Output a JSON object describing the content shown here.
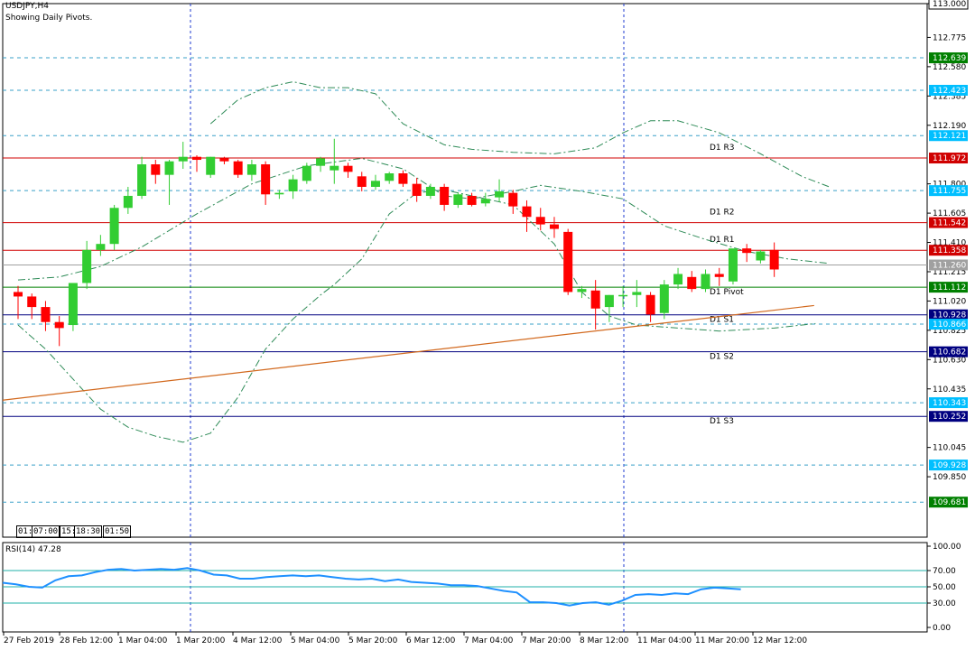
{
  "header": {
    "symbol": "USDJPY,H4",
    "subtitle": "Showing Daily Pivots."
  },
  "clocks": [
    "01:",
    "07:00",
    "15:",
    "18:30",
    "01:50"
  ],
  "colors": {
    "bull": "#32cd32",
    "bear": "#ff0000",
    "pivot_line": "#008000",
    "resistance_line": "#d00000",
    "support_line": "#000080",
    "trend_line": "#d2691e",
    "bollinger": "#2e8b57",
    "grid": "#1f3bd0",
    "hline_dashed": "#3aa0c8",
    "price_box_blue": "#00bfff",
    "rsi_line": "#1e90ff",
    "rsi_levels": "#20b2aa"
  },
  "chart_data": [
    {
      "type": "candlestick",
      "title": "USDJPY,H4",
      "subtitle": "Showing Daily Pivots.",
      "ylim": [
        109.55,
        113.0
      ],
      "y_ticks": [
        "113.000",
        "112.775",
        "112.580",
        "112.385",
        "112.190",
        "111.800",
        "111.605",
        "111.410",
        "111.215",
        "111.020",
        "110.825",
        "110.630",
        "110.435",
        "110.045",
        "109.850"
      ],
      "x_tick_labels": [
        "27 Feb 2019",
        "28 Feb 12:00",
        "1 Mar 04:00",
        "1 Mar 20:00",
        "4 Mar 12:00",
        "5 Mar 04:00",
        "5 Mar 20:00",
        "6 Mar 12:00",
        "7 Mar 04:00",
        "7 Mar 20:00",
        "8 Mar 12:00",
        "11 Mar 04:00",
        "11 Mar 20:00",
        "12 Mar 12:00"
      ],
      "candles": [
        {
          "o": 111.08,
          "h": 111.12,
          "l": 110.9,
          "c": 111.05
        },
        {
          "o": 111.05,
          "h": 111.07,
          "l": 110.9,
          "c": 110.98
        },
        {
          "o": 110.98,
          "h": 111.02,
          "l": 110.82,
          "c": 110.88
        },
        {
          "o": 110.88,
          "h": 110.92,
          "l": 110.72,
          "c": 110.84
        },
        {
          "o": 110.86,
          "h": 111.12,
          "l": 110.82,
          "c": 111.14
        },
        {
          "o": 111.14,
          "h": 111.42,
          "l": 111.1,
          "c": 111.36
        },
        {
          "o": 111.36,
          "h": 111.46,
          "l": 111.32,
          "c": 111.4
        },
        {
          "o": 111.4,
          "h": 111.66,
          "l": 111.36,
          "c": 111.64
        },
        {
          "o": 111.64,
          "h": 111.78,
          "l": 111.6,
          "c": 111.72
        },
        {
          "o": 111.72,
          "h": 111.98,
          "l": 111.7,
          "c": 111.93
        },
        {
          "o": 111.93,
          "h": 111.96,
          "l": 111.8,
          "c": 111.86
        },
        {
          "o": 111.86,
          "h": 111.96,
          "l": 111.66,
          "c": 111.95
        },
        {
          "o": 111.95,
          "h": 112.08,
          "l": 111.9,
          "c": 111.98
        },
        {
          "o": 111.98,
          "h": 111.99,
          "l": 111.88,
          "c": 111.96
        },
        {
          "o": 111.86,
          "h": 111.98,
          "l": 111.84,
          "c": 111.98
        },
        {
          "o": 111.97,
          "h": 111.98,
          "l": 111.93,
          "c": 111.95
        },
        {
          "o": 111.95,
          "h": 111.96,
          "l": 111.84,
          "c": 111.86
        },
        {
          "o": 111.86,
          "h": 111.96,
          "l": 111.82,
          "c": 111.93
        },
        {
          "o": 111.93,
          "h": 111.95,
          "l": 111.66,
          "c": 111.73
        },
        {
          "o": 111.73,
          "h": 111.76,
          "l": 111.7,
          "c": 111.74
        },
        {
          "o": 111.75,
          "h": 111.86,
          "l": 111.7,
          "c": 111.83
        },
        {
          "o": 111.82,
          "h": 111.94,
          "l": 111.8,
          "c": 111.92
        },
        {
          "o": 111.92,
          "h": 111.98,
          "l": 111.88,
          "c": 111.97
        },
        {
          "o": 111.89,
          "h": 112.1,
          "l": 111.8,
          "c": 111.92
        },
        {
          "o": 111.92,
          "h": 111.94,
          "l": 111.84,
          "c": 111.88
        },
        {
          "o": 111.85,
          "h": 111.88,
          "l": 111.75,
          "c": 111.78
        },
        {
          "o": 111.78,
          "h": 111.86,
          "l": 111.76,
          "c": 111.82
        },
        {
          "o": 111.82,
          "h": 111.88,
          "l": 111.8,
          "c": 111.87
        },
        {
          "o": 111.87,
          "h": 111.89,
          "l": 111.78,
          "c": 111.8
        },
        {
          "o": 111.8,
          "h": 111.84,
          "l": 111.68,
          "c": 111.72
        },
        {
          "o": 111.72,
          "h": 111.8,
          "l": 111.7,
          "c": 111.78
        },
        {
          "o": 111.78,
          "h": 111.8,
          "l": 111.62,
          "c": 111.66
        },
        {
          "o": 111.66,
          "h": 111.74,
          "l": 111.64,
          "c": 111.73
        },
        {
          "o": 111.72,
          "h": 111.74,
          "l": 111.65,
          "c": 111.66
        },
        {
          "o": 111.67,
          "h": 111.74,
          "l": 111.65,
          "c": 111.7
        },
        {
          "o": 111.71,
          "h": 111.83,
          "l": 111.68,
          "c": 111.75
        },
        {
          "o": 111.74,
          "h": 111.76,
          "l": 111.6,
          "c": 111.65
        },
        {
          "o": 111.65,
          "h": 111.69,
          "l": 111.48,
          "c": 111.58
        },
        {
          "o": 111.58,
          "h": 111.64,
          "l": 111.49,
          "c": 111.53
        },
        {
          "o": 111.53,
          "h": 111.58,
          "l": 111.44,
          "c": 111.5
        },
        {
          "o": 111.48,
          "h": 111.5,
          "l": 111.06,
          "c": 111.08
        },
        {
          "o": 111.08,
          "h": 111.12,
          "l": 111.04,
          "c": 111.1
        },
        {
          "o": 111.09,
          "h": 111.16,
          "l": 110.83,
          "c": 110.97
        },
        {
          "o": 110.98,
          "h": 111.06,
          "l": 110.88,
          "c": 111.06
        },
        {
          "o": 111.06,
          "h": 111.12,
          "l": 110.98,
          "c": 111.06
        },
        {
          "o": 111.06,
          "h": 111.16,
          "l": 110.98,
          "c": 111.08
        },
        {
          "o": 111.06,
          "h": 111.08,
          "l": 110.88,
          "c": 110.93
        },
        {
          "o": 110.94,
          "h": 111.16,
          "l": 110.9,
          "c": 111.13
        },
        {
          "o": 111.13,
          "h": 111.24,
          "l": 111.1,
          "c": 111.2
        },
        {
          "o": 111.18,
          "h": 111.22,
          "l": 111.08,
          "c": 111.1
        },
        {
          "o": 111.1,
          "h": 111.23,
          "l": 111.08,
          "c": 111.2
        },
        {
          "o": 111.2,
          "h": 111.24,
          "l": 111.12,
          "c": 111.18
        },
        {
          "o": 111.15,
          "h": 111.36,
          "l": 111.13,
          "c": 111.37
        },
        {
          "o": 111.37,
          "h": 111.4,
          "l": 111.28,
          "c": 111.34
        },
        {
          "o": 111.29,
          "h": 111.36,
          "l": 111.27,
          "c": 111.35
        },
        {
          "o": 111.36,
          "h": 111.41,
          "l": 111.18,
          "c": 111.23
        }
      ],
      "horizontal_levels": [
        {
          "label": "D1 R3",
          "value": 111.972,
          "style": "resistance"
        },
        {
          "label": "D1 R2",
          "value": 111.542,
          "style": "resistance"
        },
        {
          "label": "D1 R1",
          "value": 111.358,
          "style": "resistance"
        },
        {
          "label": "D1 Pivot",
          "value": 111.112,
          "style": "pivot"
        },
        {
          "label": "D1 S1",
          "value": 110.928,
          "style": "support"
        },
        {
          "label": "D1 S2",
          "value": 110.682,
          "style": "support"
        },
        {
          "label": "D1 S3",
          "value": 110.252,
          "style": "support"
        }
      ],
      "dashed_levels": [
        112.639,
        112.423,
        112.121,
        111.755,
        110.866,
        110.343,
        109.928,
        109.681
      ],
      "price_labels": [
        {
          "text": "113.000",
          "value": 113.0,
          "style": "plain"
        },
        {
          "text": "112.639",
          "value": 112.639,
          "style": "green"
        },
        {
          "text": "112.423",
          "value": 112.423,
          "style": "blue"
        },
        {
          "text": "112.121",
          "value": 112.121,
          "style": "blue"
        },
        {
          "text": "111.972",
          "value": 111.972,
          "style": "red"
        },
        {
          "text": "111.755",
          "value": 111.755,
          "style": "blue"
        },
        {
          "text": "111.542",
          "value": 111.542,
          "style": "red"
        },
        {
          "text": "111.358",
          "value": 111.358,
          "style": "red"
        },
        {
          "text": "111.260",
          "value": 111.26,
          "style": "gray"
        },
        {
          "text": "111.112",
          "value": 111.112,
          "style": "green"
        },
        {
          "text": "110.928",
          "value": 110.928,
          "style": "navy"
        },
        {
          "text": "110.866",
          "value": 110.866,
          "style": "blue"
        },
        {
          "text": "110.682",
          "value": 110.682,
          "style": "navy"
        },
        {
          "text": "110.343",
          "value": 110.343,
          "style": "blue"
        },
        {
          "text": "110.252",
          "value": 110.252,
          "style": "navy"
        },
        {
          "text": "109.928",
          "value": 109.928,
          "style": "blue"
        },
        {
          "text": "109.681",
          "value": 109.681,
          "style": "green"
        }
      ],
      "trend_line": {
        "from": [
          0,
          110.36
        ],
        "to": [
          57.9,
          110.99
        ]
      },
      "bollinger_upper": [
        [
          14,
          112.2
        ],
        [
          16,
          112.36
        ],
        [
          18,
          112.44
        ],
        [
          20,
          112.48
        ],
        [
          22,
          112.44
        ],
        [
          24,
          112.44
        ],
        [
          26,
          112.4
        ],
        [
          28,
          112.2
        ],
        [
          31,
          112.06
        ],
        [
          33,
          112.03
        ],
        [
          36,
          112.01
        ],
        [
          39,
          112.0
        ],
        [
          42,
          112.04
        ],
        [
          44,
          112.14
        ],
        [
          46,
          112.22
        ],
        [
          48,
          112.22
        ],
        [
          51,
          112.14
        ],
        [
          54,
          112.0
        ],
        [
          57,
          111.85
        ],
        [
          59,
          111.78
        ]
      ],
      "bollinger_middle": [
        [
          0,
          111.16
        ],
        [
          3,
          111.18
        ],
        [
          6,
          111.25
        ],
        [
          9,
          111.38
        ],
        [
          13,
          111.6
        ],
        [
          17,
          111.8
        ],
        [
          21,
          111.92
        ],
        [
          25,
          111.97
        ],
        [
          28,
          111.9
        ],
        [
          31,
          111.72
        ],
        [
          33,
          111.7
        ],
        [
          36,
          111.75
        ],
        [
          38,
          111.79
        ],
        [
          41,
          111.75
        ],
        [
          44,
          111.7
        ],
        [
          47,
          111.52
        ],
        [
          50,
          111.43
        ],
        [
          53,
          111.35
        ],
        [
          56,
          111.3
        ],
        [
          59,
          111.27
        ]
      ],
      "bollinger_lower": [
        [
          0,
          110.86
        ],
        [
          2,
          110.7
        ],
        [
          4,
          110.5
        ],
        [
          6,
          110.3
        ],
        [
          8,
          110.18
        ],
        [
          10,
          110.12
        ],
        [
          12,
          110.08
        ],
        [
          14,
          110.14
        ],
        [
          16,
          110.38
        ],
        [
          18,
          110.7
        ],
        [
          20,
          110.9
        ],
        [
          22,
          111.06
        ],
        [
          23,
          111.13
        ],
        [
          25,
          111.3
        ],
        [
          27,
          111.6
        ],
        [
          29,
          111.74
        ],
        [
          31,
          111.76
        ],
        [
          33,
          111.72
        ],
        [
          36,
          111.66
        ],
        [
          39,
          111.4
        ],
        [
          41,
          111.08
        ],
        [
          43,
          110.92
        ],
        [
          45,
          110.86
        ],
        [
          48,
          110.84
        ],
        [
          51,
          110.82
        ],
        [
          55,
          110.84
        ],
        [
          58,
          110.87
        ]
      ]
    },
    {
      "type": "line",
      "title": "RSI(14) 47.28",
      "ylim": [
        0,
        100
      ],
      "y_ticks": [
        "100.00",
        "70.00",
        "50.00",
        "30.00",
        "0.00"
      ],
      "levels": [
        70,
        50,
        30
      ],
      "series": [
        {
          "values": [
            55,
            53,
            50,
            49,
            58,
            63,
            64,
            68,
            71,
            72,
            70,
            71,
            72,
            71,
            73,
            70,
            65,
            64,
            60,
            60,
            62,
            63,
            64,
            63,
            64,
            62,
            60,
            59,
            60,
            57,
            59,
            56,
            55,
            54,
            52,
            52,
            51,
            48,
            45,
            43,
            31,
            31,
            30,
            27,
            30,
            31,
            28,
            33,
            40,
            41,
            40,
            42,
            41,
            47,
            49,
            48,
            47
          ]
        }
      ]
    }
  ]
}
